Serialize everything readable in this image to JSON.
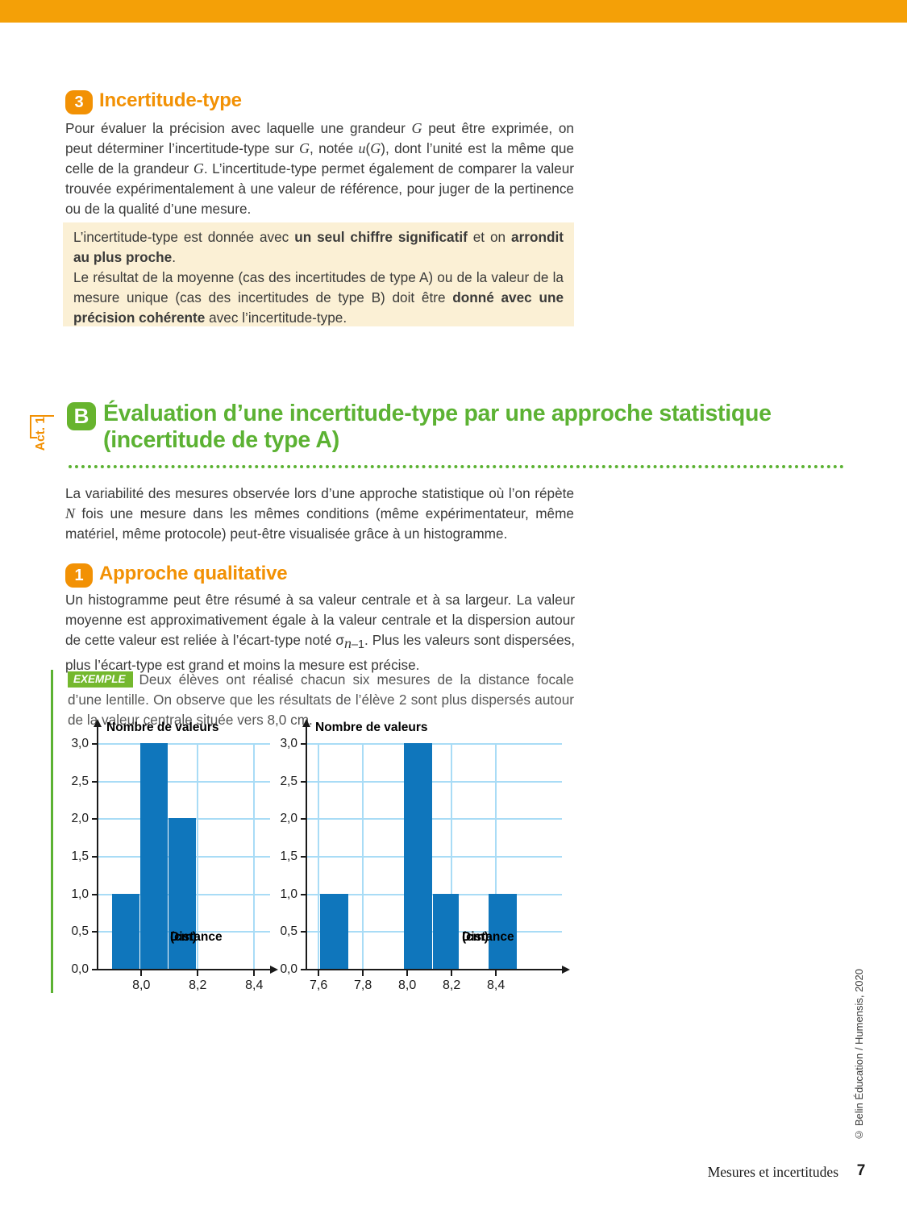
{
  "palette": {
    "orange": "#f29104",
    "top_bar_orange": "#f4a007",
    "green": "#5cb233",
    "green_badge": "#67b42e",
    "example_green": "#74b82e",
    "bar_blue": "#0f76bc",
    "grid_blue": "#a9dcf6",
    "cream_box": "#fbf0d5",
    "body_text": "#3a3a39",
    "example_text": "#575756"
  },
  "section3": {
    "badge": "3",
    "title": "Incertitude-type",
    "paragraph_html": "Pour évaluer la précision avec laquelle une grandeur <i>G</i> peut être exprimée, on peut déterminer l’incertitude-type sur <i>G</i>, notée <i>u</i>(<i>G</i>), dont l’unité est la même que celle de la grandeur <i>G</i>. L’incertitude-type permet également de comparer la valeur trouvée expérimentalement à une valeur de référence, pour juger de la pertinence ou de la qualité d’une mesure."
  },
  "note_box": {
    "p1_html": "L’incertitude-type est donnée avec <b>un seul chiffre significatif</b> et on <b>arrondit au plus proche</b>.",
    "p2_html": "Le résultat de la moyenne (cas des incertitudes de type A) ou de la valeur de la mesure unique (cas des incertitudes de type B) doit être <b>donné avec une précision cohérente</b> avec l’incertitude-type."
  },
  "act_tab": {
    "label": "Act. 1"
  },
  "sectionB": {
    "badge": "B",
    "title_line1": "Évaluation d’une incertitude-type par une approche statistique",
    "title_line2": "(incertitude de type A)",
    "paragraph_html": "La variabilité des mesures observée lors d’une approche statistique où l’on répète <i>N</i> fois une mesure dans les mêmes conditions (même expérimentateur, même matériel, même protocole) peut-être visualisée grâce à un histogramme."
  },
  "section1": {
    "badge": "1",
    "title": "Approche qualitative",
    "paragraph_html": "Un histogramme peut être résumé à sa valeur centrale et à sa largeur. La valeur moyenne est approximativement égale à la valeur centrale et la dispersion autour de cette valeur est reliée à l’écart-type noté σ<sub><i>n</i>–1</sub>. Plus les valeurs sont dispersées, plus l’écart-type est grand et moins la mesure est précise."
  },
  "example": {
    "badge": "EXEMPLE",
    "text_html": "Deux élèves ont réalisé chacun six mesures de la distance focale d’une lentille. On observe que les résultats de l’élève 2 sont plus dispersés autour de la valeur centrale située vers 8,0 cm."
  },
  "chart_data": [
    {
      "type": "bar",
      "ylabel": "Nombre de valeurs",
      "xlabel": "Distance",
      "xlabel_unit": "(cm)",
      "ylim": [
        0,
        3
      ],
      "grid": true,
      "yticks": [
        {
          "v": 0.0,
          "label": "0,0"
        },
        {
          "v": 0.5,
          "label": "0,5"
        },
        {
          "v": 1.0,
          "label": "1,0"
        },
        {
          "v": 1.5,
          "label": "1,5"
        },
        {
          "v": 2.0,
          "label": "2,0"
        },
        {
          "v": 2.5,
          "label": "2,5"
        },
        {
          "v": 3.0,
          "label": "3,0"
        }
      ],
      "xticks": [
        {
          "v": 8.0,
          "label": "8,0"
        },
        {
          "v": 8.2,
          "label": "8,2"
        },
        {
          "v": 8.4,
          "label": "8,4"
        }
      ],
      "bins": [
        {
          "from": 7.9,
          "to": 8.0,
          "count": 1
        },
        {
          "from": 8.0,
          "to": 8.1,
          "count": 3
        },
        {
          "from": 8.1,
          "to": 8.2,
          "count": 2
        }
      ]
    },
    {
      "type": "bar",
      "ylabel": "Nombre de valeurs",
      "xlabel": "Distance",
      "xlabel_unit": "(cm)",
      "ylim": [
        0,
        3
      ],
      "grid": true,
      "yticks": [
        {
          "v": 0.0,
          "label": "0,0"
        },
        {
          "v": 0.5,
          "label": "0,5"
        },
        {
          "v": 1.0,
          "label": "1,0"
        },
        {
          "v": 1.5,
          "label": "1,5"
        },
        {
          "v": 2.0,
          "label": "2,0"
        },
        {
          "v": 2.5,
          "label": "2,5"
        },
        {
          "v": 3.0,
          "label": "3,0"
        }
      ],
      "xticks": [
        {
          "v": 7.6,
          "label": "7,6"
        },
        {
          "v": 7.8,
          "label": "7,8"
        },
        {
          "v": 8.0,
          "label": "8,0"
        },
        {
          "v": 8.2,
          "label": "8,2"
        },
        {
          "v": 8.4,
          "label": "8,4"
        }
      ],
      "bins": [
        {
          "from": 7.61,
          "to": 7.74,
          "count": 1
        },
        {
          "from": 7.99,
          "to": 8.12,
          "count": 3
        },
        {
          "from": 8.12,
          "to": 8.24,
          "count": 1
        },
        {
          "from": 8.37,
          "to": 8.5,
          "count": 1
        }
      ]
    }
  ],
  "copyright": "© Belin Éducation / Humensis, 2020",
  "footer": {
    "chapter": "Mesures et incertitudes",
    "page": "7"
  }
}
